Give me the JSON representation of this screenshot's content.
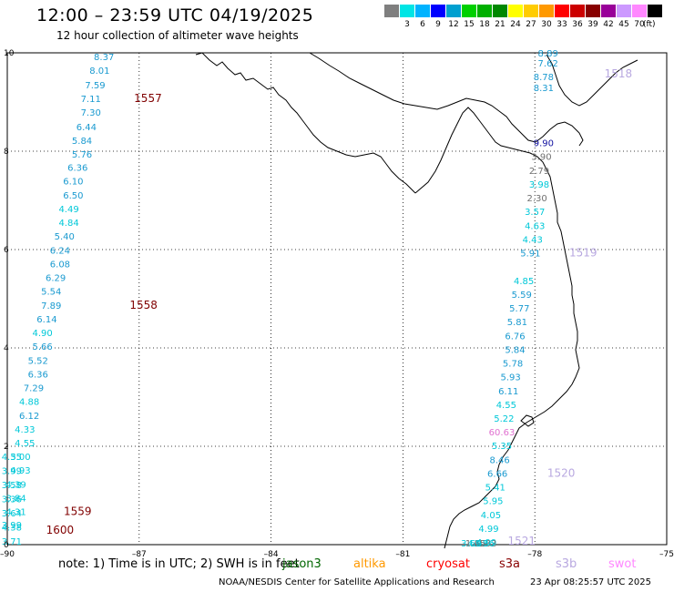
{
  "title": "12:00 – 23:59 UTC 04/19/2025",
  "subtitle": "12 hour collection of altimeter wave heights",
  "scale": {
    "unit": "(ft)",
    "items": [
      {
        "color": "#7f7f7f",
        "label": ""
      },
      {
        "color": "#00e5e5",
        "label": "3"
      },
      {
        "color": "#00b3ff",
        "label": "6"
      },
      {
        "color": "#0000ff",
        "label": "9"
      },
      {
        "color": "#00a0d0",
        "label": "12"
      },
      {
        "color": "#00d000",
        "label": "15"
      },
      {
        "color": "#00b000",
        "label": "18"
      },
      {
        "color": "#008800",
        "label": "21"
      },
      {
        "color": "#ffff00",
        "label": "24"
      },
      {
        "color": "#ffcc00",
        "label": "27"
      },
      {
        "color": "#ff9900",
        "label": "30"
      },
      {
        "color": "#ff0000",
        "label": "33"
      },
      {
        "color": "#cc0000",
        "label": "36"
      },
      {
        "color": "#880000",
        "label": "39"
      },
      {
        "color": "#990099",
        "label": "42"
      },
      {
        "color": "#cc99ff",
        "label": "45"
      },
      {
        "color": "#ff88ff",
        "label": "70"
      },
      {
        "color": "#000000",
        "label": ""
      }
    ]
  },
  "axes": {
    "x_ticks": [
      {
        "value": -90,
        "label": "–90"
      },
      {
        "value": -87,
        "label": "–87"
      },
      {
        "value": -84,
        "label": "–84"
      },
      {
        "value": -81,
        "label": "–81"
      },
      {
        "value": -78,
        "label": "–78"
      },
      {
        "value": -75,
        "label": "–75"
      }
    ],
    "y_ticks": [
      {
        "value": 0,
        "label": "0"
      },
      {
        "value": 2,
        "label": "2"
      },
      {
        "value": 4,
        "label": "4"
      },
      {
        "value": 6,
        "label": "6"
      },
      {
        "value": 8,
        "label": "8"
      },
      {
        "value": 10,
        "label": "10"
      }
    ]
  },
  "colors": {
    "cyan": "#00c8d8",
    "blue": "#1a9ad0",
    "navy": "#1010a0",
    "gray": "#707070",
    "pink": "#e070d0",
    "maroon": "#800000",
    "lavender": "#b8a8e0"
  },
  "tracks": [
    {
      "name": "west",
      "points": [
        {
          "x": -87.8,
          "y": 9.85,
          "v": "8.37",
          "c": "blue"
        },
        {
          "x": -87.9,
          "y": 9.57,
          "v": "8.01",
          "c": "blue"
        },
        {
          "x": -88.0,
          "y": 9.28,
          "v": "7.59",
          "c": "blue"
        },
        {
          "x": -88.1,
          "y": 9.0,
          "v": "7.11",
          "c": "blue"
        },
        {
          "x": -88.1,
          "y": 8.72,
          "v": "7.30",
          "c": "blue"
        },
        {
          "x": -88.2,
          "y": 8.43,
          "v": "6.44",
          "c": "blue"
        },
        {
          "x": -88.3,
          "y": 8.15,
          "v": "5.84",
          "c": "blue"
        },
        {
          "x": -88.3,
          "y": 7.87,
          "v": "5.76",
          "c": "blue"
        },
        {
          "x": -88.4,
          "y": 7.6,
          "v": "6.36",
          "c": "blue"
        },
        {
          "x": -88.5,
          "y": 7.32,
          "v": "6.10",
          "c": "blue"
        },
        {
          "x": -88.5,
          "y": 7.04,
          "v": "6.50",
          "c": "blue"
        },
        {
          "x": -88.6,
          "y": 6.76,
          "v": "4.49",
          "c": "cyan"
        },
        {
          "x": -88.6,
          "y": 6.48,
          "v": "4.84",
          "c": "cyan"
        },
        {
          "x": -88.7,
          "y": 6.2,
          "v": "5.40",
          "c": "blue"
        },
        {
          "x": -88.8,
          "y": 5.92,
          "v": "6.24",
          "c": "blue"
        },
        {
          "x": -88.8,
          "y": 5.64,
          "v": "6.08",
          "c": "blue"
        },
        {
          "x": -88.9,
          "y": 5.36,
          "v": "6.29",
          "c": "blue"
        },
        {
          "x": -89.0,
          "y": 5.08,
          "v": "5.54",
          "c": "blue"
        },
        {
          "x": -89.0,
          "y": 4.8,
          "v": "7.89",
          "c": "blue"
        },
        {
          "x": -89.1,
          "y": 4.52,
          "v": "6.14",
          "c": "blue"
        },
        {
          "x": -89.2,
          "y": 4.24,
          "v": "4.90",
          "c": "cyan"
        },
        {
          "x": -89.2,
          "y": 3.96,
          "v": "5.66",
          "c": "blue"
        },
        {
          "x": -89.3,
          "y": 3.68,
          "v": "5.52",
          "c": "blue"
        },
        {
          "x": -89.3,
          "y": 3.4,
          "v": "6.36",
          "c": "blue"
        },
        {
          "x": -89.4,
          "y": 3.12,
          "v": "7.29",
          "c": "blue"
        },
        {
          "x": -89.5,
          "y": 2.84,
          "v": "4.88",
          "c": "cyan"
        },
        {
          "x": -89.5,
          "y": 2.56,
          "v": "6.12",
          "c": "blue"
        },
        {
          "x": -89.6,
          "y": 2.28,
          "v": "4.33",
          "c": "cyan"
        },
        {
          "x": -89.6,
          "y": 2.0,
          "v": "4.55",
          "c": "cyan"
        },
        {
          "x": -89.7,
          "y": 1.72,
          "v": "5.00",
          "c": "cyan"
        },
        {
          "x": -89.7,
          "y": 1.44,
          "v": "4.93",
          "c": "cyan"
        },
        {
          "x": -89.8,
          "y": 1.16,
          "v": "4.39",
          "c": "cyan"
        },
        {
          "x": -89.8,
          "y": 0.88,
          "v": "3.84",
          "c": "cyan"
        },
        {
          "x": -89.8,
          "y": 0.6,
          "v": "4.31",
          "c": "cyan"
        },
        {
          "x": -89.9,
          "y": 0.33,
          "v": "3.99",
          "c": "cyan"
        }
      ],
      "points2": [
        {
          "x": -89.9,
          "y": 0.07,
          "v": "4.35",
          "c": "cyan"
        },
        {
          "x": -89.9,
          "y": -0.22,
          "v": "3.99",
          "c": "cyan"
        },
        {
          "x": -89.9,
          "y": -0.5,
          "v": "3.58",
          "c": "cyan"
        },
        {
          "x": -89.9,
          "y": -0.78,
          "v": "3.36",
          "c": "cyan"
        },
        {
          "x": -89.9,
          "y": -1.06,
          "v": "3.64",
          "c": "cyan"
        },
        {
          "x": -89.9,
          "y": -1.34,
          "v": "4.38",
          "c": "cyan"
        },
        {
          "x": -89.9,
          "y": -1.62,
          "v": "3.71",
          "c": "cyan"
        }
      ]
    },
    {
      "name": "east",
      "points": [
        {
          "x": -77.7,
          "y": 10.0,
          "v": "8.89",
          "c": "blue"
        },
        {
          "x": -77.7,
          "y": 9.72,
          "v": "7.62",
          "c": "blue"
        },
        {
          "x": -77.8,
          "y": 9.44,
          "v": "8.78",
          "c": "blue"
        },
        {
          "x": -77.8,
          "y": 9.22,
          "v": "8.31",
          "c": "blue"
        },
        {
          "x": -77.8,
          "y": 8.1,
          "v": "9.90",
          "c": "navy"
        },
        {
          "x": -77.85,
          "y": 7.82,
          "v": "3.90",
          "c": "gray"
        },
        {
          "x": -77.9,
          "y": 7.54,
          "v": "2.79",
          "c": "gray"
        },
        {
          "x": -77.9,
          "y": 7.26,
          "v": "3.98",
          "c": "cyan"
        },
        {
          "x": -77.95,
          "y": 6.98,
          "v": "2.30",
          "c": "gray"
        },
        {
          "x": -78.0,
          "y": 6.7,
          "v": "3.57",
          "c": "cyan"
        },
        {
          "x": -78.0,
          "y": 6.42,
          "v": "4.63",
          "c": "cyan"
        },
        {
          "x": -78.05,
          "y": 6.14,
          "v": "4.43",
          "c": "cyan"
        },
        {
          "x": -78.1,
          "y": 5.86,
          "v": "5.91",
          "c": "blue"
        },
        {
          "x": -78.25,
          "y": 5.3,
          "v": "4.85",
          "c": "cyan"
        },
        {
          "x": -78.3,
          "y": 5.02,
          "v": "5.59",
          "c": "blue"
        },
        {
          "x": -78.35,
          "y": 4.74,
          "v": "5.77",
          "c": "blue"
        },
        {
          "x": -78.4,
          "y": 4.46,
          "v": "5.81",
          "c": "blue"
        },
        {
          "x": -78.45,
          "y": 4.18,
          "v": "6.76",
          "c": "blue"
        },
        {
          "x": -78.45,
          "y": 3.9,
          "v": "5.84",
          "c": "blue"
        },
        {
          "x": -78.5,
          "y": 3.62,
          "v": "5.78",
          "c": "blue"
        },
        {
          "x": -78.55,
          "y": 3.34,
          "v": "5.93",
          "c": "blue"
        },
        {
          "x": -78.6,
          "y": 3.06,
          "v": "6.11",
          "c": "blue"
        },
        {
          "x": -78.65,
          "y": 2.78,
          "v": "4.55",
          "c": "cyan"
        },
        {
          "x": -78.7,
          "y": 2.5,
          "v": "5.22",
          "c": "cyan"
        },
        {
          "x": -78.75,
          "y": 2.22,
          "v": "60.63",
          "c": "pink"
        },
        {
          "x": -78.75,
          "y": 1.94,
          "v": "5.35",
          "c": "cyan"
        },
        {
          "x": -78.8,
          "y": 1.66,
          "v": "8.46",
          "c": "blue"
        },
        {
          "x": -78.85,
          "y": 1.38,
          "v": "6.66",
          "c": "blue"
        },
        {
          "x": -78.9,
          "y": 1.1,
          "v": "5.41",
          "c": "cyan"
        },
        {
          "x": -78.95,
          "y": 0.82,
          "v": "5.95",
          "c": "cyan"
        },
        {
          "x": -79.0,
          "y": 0.54,
          "v": "4.05",
          "c": "cyan"
        },
        {
          "x": -79.05,
          "y": 0.26,
          "v": "4.99",
          "c": "cyan"
        },
        {
          "x": -79.1,
          "y": -0.02,
          "v": "4.99",
          "c": "cyan"
        },
        {
          "x": -79.1,
          "y": -0.3,
          "v": "2.82",
          "c": "gray"
        },
        {
          "x": -79.15,
          "y": -0.58,
          "v": "3.86",
          "c": "cyan"
        },
        {
          "x": -79.3,
          "y": -1.14,
          "v": "4.02",
          "c": "cyan"
        },
        {
          "x": -79.35,
          "y": -1.42,
          "v": "1.65",
          "c": "gray"
        },
        {
          "x": -79.45,
          "y": -1.7,
          "v": "3.69",
          "c": "cyan"
        }
      ]
    }
  ],
  "time_labels": [
    {
      "x": -86.8,
      "y": 9.0,
      "t": "1557",
      "c": "maroon"
    },
    {
      "x": -86.9,
      "y": 4.8,
      "t": "1558",
      "c": "maroon"
    },
    {
      "x": -88.4,
      "y": 0.6,
      "t": "1559",
      "c": "maroon"
    },
    {
      "x": -88.8,
      "y": -1.62,
      "t": "1600",
      "c": "maroon"
    },
    {
      "x": -76.1,
      "y": 9.5,
      "t": "1518",
      "c": "lavender"
    },
    {
      "x": -76.9,
      "y": 5.86,
      "t": "1519",
      "c": "lavender"
    },
    {
      "x": -77.4,
      "y": 1.38,
      "t": "1520",
      "c": "lavender"
    },
    {
      "x": -78.3,
      "y": -1.7,
      "t": "1521",
      "c": "lavender"
    }
  ],
  "note": "note:  1) Time is in UTC;  2) SWH is in feet",
  "satellites": [
    {
      "name": "jason3",
      "color": "#006600",
      "left": 310
    },
    {
      "name": "altika",
      "color": "#ff9900",
      "left": 388
    },
    {
      "name": "cryosat",
      "color": "#ff0000",
      "left": 468
    },
    {
      "name": "s3a",
      "color": "#880000",
      "left": 548
    },
    {
      "name": "s3b",
      "color": "#b8a8e0",
      "left": 610
    },
    {
      "name": "swot",
      "color": "#ff88ff",
      "left": 668
    }
  ],
  "credit": "NOAA/NESDIS Center for Satellite Applications and Research",
  "stamp": "23 Apr 08:25:57 UTC 2025"
}
